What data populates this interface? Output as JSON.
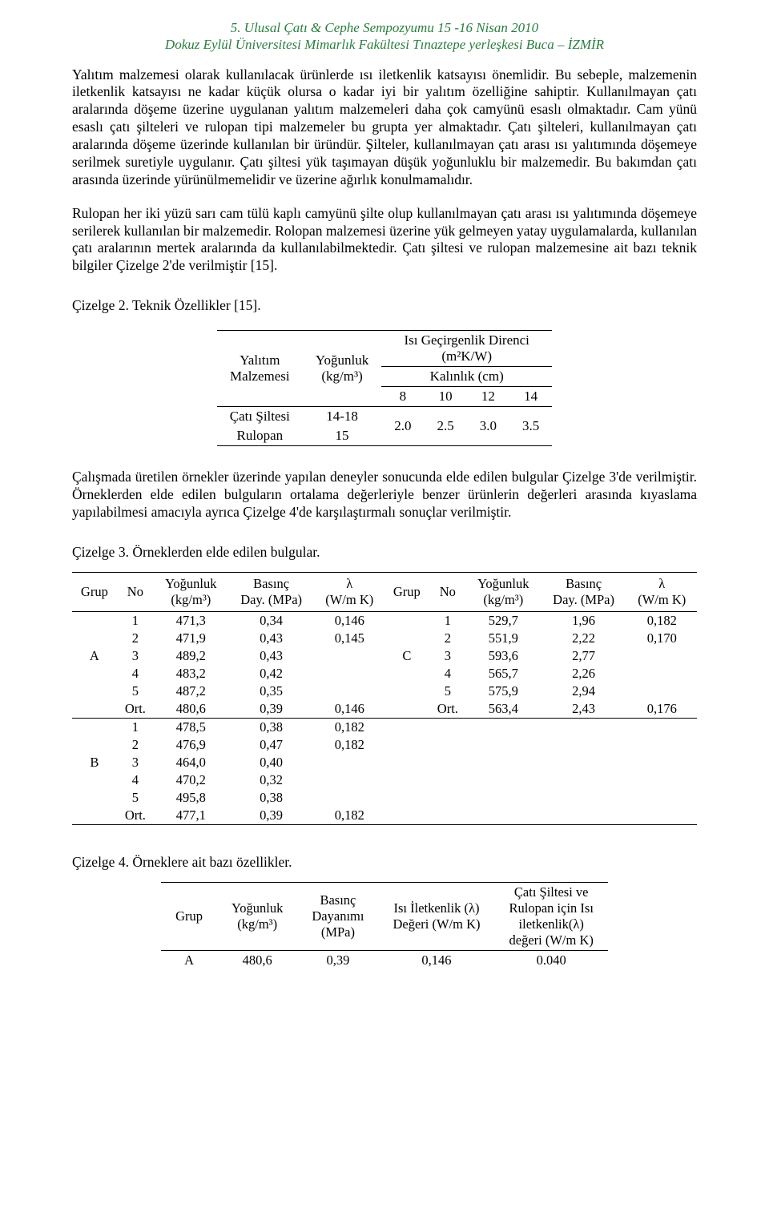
{
  "header": {
    "line1": "5. Ulusal Çatı & Cephe Sempozyumu 15 -16 Nisan 2010",
    "line2": "Dokuz Eylül Üniversitesi Mimarlık Fakültesi Tınaztepe yerleşkesi Buca – İZMİR"
  },
  "para1": "Yalıtım malzemesi olarak kullanılacak ürünlerde ısı iletkenlik katsayısı önemlidir. Bu sebeple, malzemenin iletkenlik katsayısı ne kadar küçük olursa o kadar iyi bir yalıtım özelliğine sahiptir. Kullanılmayan çatı aralarında döşeme üzerine uygulanan yalıtım malzemeleri daha çok camyünü esaslı olmaktadır. Cam yünü esaslı çatı şilteleri ve rulopan tipi malzemeler bu grupta yer almaktadır. Çatı şilteleri, kullanılmayan çatı aralarında döşeme üzerinde kullanılan bir üründür. Şilteler, kullanılmayan çatı arası ısı yalıtımında döşemeye serilmek suretiyle uygulanır. Çatı şiltesi yük taşımayan düşük yoğunluklu bir malzemedir. Bu bakımdan çatı arasında üzerinde yürünülmemelidir ve üzerine ağırlık konulmamalıdır.",
  "para2": "Rulopan her iki yüzü sarı cam tülü kaplı camyünü şilte olup kullanılmayan çatı arası ısı yalıtımında döşemeye serilerek kullanılan bir malzemedir. Rolopan malzemesi üzerine yük gelmeyen yatay uygulamalarda, kullanılan çatı aralarının mertek aralarında da kullanılabilmektedir. Çatı şiltesi ve rulopan malzemesine ait bazı teknik bilgiler Çizelge 2'de verilmiştir [15].",
  "caption2": "Çizelge 2. Teknik Özellikler [15].",
  "table2": {
    "h_material": "Yalıtım\nMalzemesi",
    "h_density": "Yoğunluk\n(kg/m³)",
    "h_resistance_top": "Isı Geçirgenlik Direnci\n(m²K/W)",
    "h_thickness": "Kalınlık (cm)",
    "thick_cols": [
      "8",
      "10",
      "12",
      "14"
    ],
    "rows": [
      {
        "name": "Çatı Şiltesi",
        "density": "14-18"
      },
      {
        "name": "Rulopan",
        "density": "15"
      }
    ],
    "values": [
      "2.0",
      "2.5",
      "3.0",
      "3.5"
    ]
  },
  "para3": "Çalışmada üretilen örnekler üzerinde yapılan deneyler sonucunda elde edilen bulgular Çizelge 3'de verilmiştir. Örneklerden elde edilen bulguların ortalama değerleriyle benzer ürünlerin değerleri arasında kıyaslama yapılabilmesi amacıyla ayrıca Çizelge 4'de karşılaştırmalı sonuçlar verilmiştir.",
  "caption3": "Çizelge 3. Örneklerden elde edilen bulgular.",
  "table3": {
    "headers": {
      "grup": "Grup",
      "no": "No",
      "yog": "Yoğunluk\n(kg/m³)",
      "bas": "Basınç\nDay. (MPa)",
      "lam": "λ\n(W/m K)"
    },
    "left": [
      {
        "grup": "A",
        "rows": [
          [
            "1",
            "471,3",
            "0,34",
            "0,146"
          ],
          [
            "2",
            "471,9",
            "0,43",
            "0,145"
          ],
          [
            "3",
            "489,2",
            "0,43",
            ""
          ],
          [
            "4",
            "483,2",
            "0,42",
            ""
          ],
          [
            "5",
            "487,2",
            "0,35",
            ""
          ]
        ],
        "ort": [
          "Ort.",
          "480,6",
          "0,39",
          "0,146"
        ]
      },
      {
        "grup": "B",
        "rows": [
          [
            "1",
            "478,5",
            "0,38",
            "0,182"
          ],
          [
            "2",
            "476,9",
            "0,47",
            "0,182"
          ],
          [
            "3",
            "464,0",
            "0,40",
            ""
          ],
          [
            "4",
            "470,2",
            "0,32",
            ""
          ],
          [
            "5",
            "495,8",
            "0,38",
            ""
          ]
        ],
        "ort": [
          "Ort.",
          "477,1",
          "0,39",
          "0,182"
        ]
      }
    ],
    "right": [
      {
        "grup": "C",
        "rows": [
          [
            "1",
            "529,7",
            "1,96",
            "0,182"
          ],
          [
            "2",
            "551,9",
            "2,22",
            "0,170"
          ],
          [
            "3",
            "593,6",
            "2,77",
            ""
          ],
          [
            "4",
            "565,7",
            "2,26",
            ""
          ],
          [
            "5",
            "575,9",
            "2,94",
            ""
          ]
        ],
        "ort": [
          "Ort.",
          "563,4",
          "2,43",
          "0,176"
        ]
      }
    ]
  },
  "caption4": "Çizelge 4. Örneklere ait bazı özellikler.",
  "table4": {
    "headers": {
      "grup": "Grup",
      "yog": "Yoğunluk\n(kg/m³)",
      "bas": "Basınç\nDayanımı\n(MPa)",
      "ilet": "Isı İletkenlik (λ)\nDeğeri (W/m K)",
      "cati": "Çatı Şiltesi ve\nRulopan için Isı\niletkenlik(λ)\ndeğeri (W/m K)"
    },
    "row": [
      "A",
      "480,6",
      "0,39",
      "0,146",
      "0.040"
    ]
  }
}
